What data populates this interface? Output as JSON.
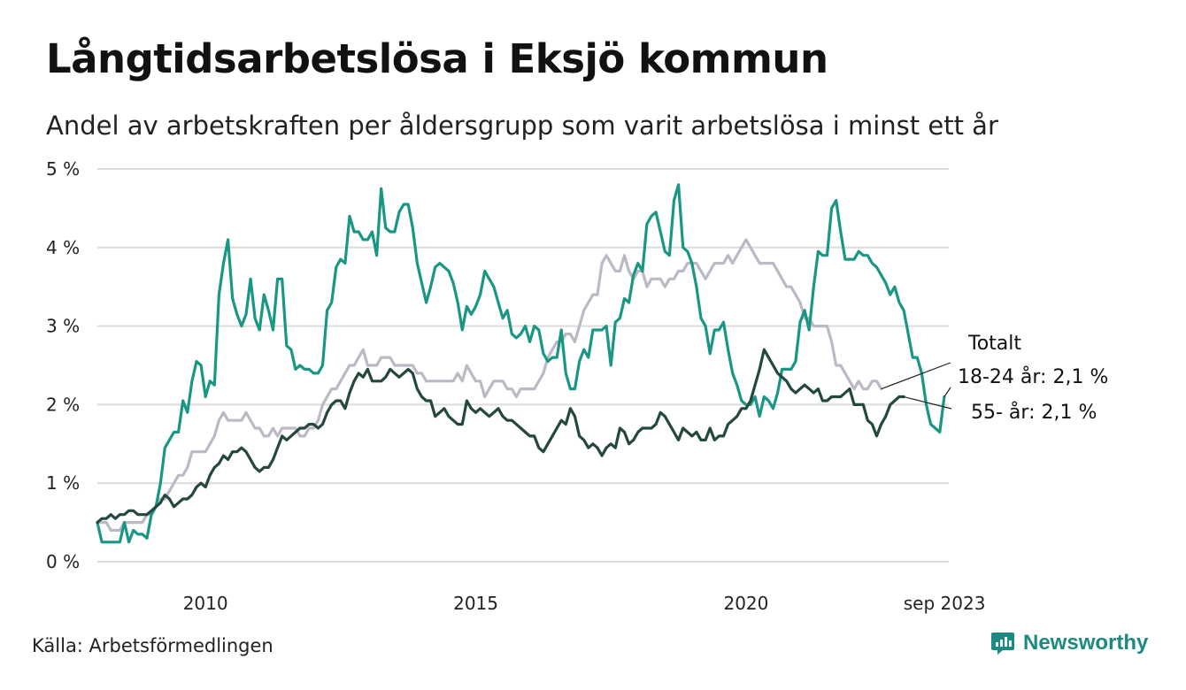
{
  "title": "Långtidsarbetslösa i Eksjö kommun",
  "subtitle": "Andel av arbetskraften per åldersgrupp som varit arbetslösa i minst ett år",
  "source": "Källa: Arbetsförmedlingen",
  "brand": "Newsworthy",
  "colors": {
    "total": "#bcb9c6",
    "youth": "#1a9685",
    "older": "#24473f",
    "grid": "#dcdcdc",
    "brand": "#1b8a80"
  },
  "chart_data": {
    "type": "line",
    "x_start": 2008.0,
    "x_step": 0.08333,
    "xlim": [
      2008.0,
      2023.75
    ],
    "ylim": [
      0,
      5
    ],
    "y_ticks": [
      0,
      1,
      2,
      3,
      4,
      5
    ],
    "y_tick_labels": [
      "0 %",
      "1 %",
      "2 %",
      "3 %",
      "4 %",
      "5 %"
    ],
    "x_ticks": [
      2010,
      2015,
      2020,
      2023.67
    ],
    "x_tick_labels": [
      "2010",
      "2015",
      "2020",
      "sep 2023"
    ],
    "series": [
      {
        "name": "Totalt",
        "label": "Totalt",
        "color": "#bcb9c6",
        "values": [
          0.5,
          0.5,
          0.5,
          0.4,
          0.4,
          0.4,
          0.5,
          0.5,
          0.5,
          0.5,
          0.5,
          0.6,
          0.6,
          0.7,
          0.8,
          0.8,
          0.9,
          1.0,
          1.1,
          1.1,
          1.2,
          1.4,
          1.4,
          1.4,
          1.4,
          1.5,
          1.6,
          1.8,
          1.9,
          1.8,
          1.8,
          1.8,
          1.8,
          1.9,
          1.8,
          1.7,
          1.7,
          1.6,
          1.6,
          1.7,
          1.6,
          1.7,
          1.7,
          1.7,
          1.7,
          1.6,
          1.6,
          1.7,
          1.7,
          1.8,
          2.0,
          2.1,
          2.2,
          2.2,
          2.3,
          2.4,
          2.5,
          2.5,
          2.6,
          2.7,
          2.5,
          2.5,
          2.5,
          2.6,
          2.6,
          2.6,
          2.5,
          2.5,
          2.5,
          2.5,
          2.5,
          2.4,
          2.4,
          2.3,
          2.3,
          2.3,
          2.3,
          2.3,
          2.3,
          2.3,
          2.4,
          2.3,
          2.5,
          2.4,
          2.3,
          2.3,
          2.1,
          2.2,
          2.3,
          2.3,
          2.3,
          2.2,
          2.2,
          2.1,
          2.2,
          2.2,
          2.2,
          2.2,
          2.3,
          2.4,
          2.6,
          2.7,
          2.8,
          2.8,
          2.9,
          2.9,
          2.8,
          3.0,
          3.2,
          3.3,
          3.4,
          3.4,
          3.8,
          3.9,
          3.8,
          3.7,
          3.7,
          3.9,
          3.7,
          3.6,
          3.7,
          3.7,
          3.5,
          3.6,
          3.6,
          3.6,
          3.5,
          3.6,
          3.6,
          3.7,
          3.7,
          3.8,
          3.8,
          3.8,
          3.7,
          3.6,
          3.7,
          3.8,
          3.8,
          3.8,
          3.9,
          3.8,
          3.9,
          4.0,
          4.1,
          4.0,
          3.9,
          3.8,
          3.8,
          3.8,
          3.8,
          3.7,
          3.6,
          3.5,
          3.5,
          3.4,
          3.3,
          3.1,
          3.1,
          3.0,
          3.0,
          3.0,
          3.0,
          2.8,
          2.5,
          2.5,
          2.4,
          2.3,
          2.2,
          2.3,
          2.2,
          2.2,
          2.3,
          2.3,
          2.2
        ]
      },
      {
        "name": "18-24 år",
        "label": "18-24 år: 2,1 %",
        "color": "#1a9685",
        "values": [
          0.5,
          0.25,
          0.25,
          0.25,
          0.25,
          0.25,
          0.5,
          0.25,
          0.4,
          0.35,
          0.35,
          0.3,
          0.6,
          0.7,
          1.0,
          1.45,
          1.55,
          1.65,
          1.65,
          2.05,
          1.9,
          2.3,
          2.55,
          2.5,
          2.1,
          2.3,
          2.25,
          3.4,
          3.8,
          4.1,
          3.35,
          3.15,
          3.0,
          3.15,
          3.6,
          3.1,
          2.95,
          3.4,
          3.2,
          2.95,
          3.6,
          3.6,
          2.75,
          2.7,
          2.45,
          2.5,
          2.45,
          2.45,
          2.4,
          2.4,
          2.5,
          3.2,
          3.3,
          3.75,
          3.85,
          3.8,
          4.4,
          4.2,
          4.2,
          4.1,
          4.1,
          4.2,
          3.9,
          4.75,
          4.25,
          4.2,
          4.2,
          4.45,
          4.55,
          4.55,
          4.25,
          3.8,
          3.55,
          3.3,
          3.5,
          3.75,
          3.8,
          3.75,
          3.7,
          3.55,
          3.3,
          2.95,
          3.25,
          3.15,
          3.25,
          3.4,
          3.7,
          3.6,
          3.5,
          3.3,
          3.1,
          3.2,
          2.9,
          2.85,
          2.9,
          3.0,
          2.8,
          3.0,
          2.95,
          2.65,
          2.55,
          2.6,
          2.6,
          2.95,
          2.4,
          2.2,
          2.2,
          2.55,
          2.7,
          2.6,
          2.95,
          2.95,
          2.95,
          3.0,
          2.5,
          3.05,
          3.1,
          3.35,
          3.3,
          3.65,
          3.8,
          3.7,
          4.3,
          4.4,
          4.45,
          4.2,
          3.95,
          3.9,
          4.6,
          4.8,
          4.0,
          3.95,
          3.8,
          3.5,
          3.1,
          3.0,
          2.65,
          2.95,
          2.95,
          3.05,
          2.7,
          2.4,
          2.25,
          2.05,
          2.0,
          2.0,
          2.1,
          1.85,
          2.1,
          2.05,
          1.95,
          2.15,
          2.45,
          2.45,
          2.45,
          2.55,
          3.05,
          3.2,
          2.95,
          3.5,
          3.95,
          3.9,
          3.9,
          4.5,
          4.6,
          4.2,
          3.85,
          3.85,
          3.85,
          3.95,
          3.9,
          3.9,
          3.8,
          3.75,
          3.65,
          3.55,
          3.4,
          3.5,
          3.3,
          3.2,
          2.9,
          2.6,
          2.6,
          2.4,
          2.0,
          1.75,
          1.7,
          1.65,
          2.1
        ]
      },
      {
        "name": "55- år",
        "label": "55- år: 2,1 %",
        "color": "#24473f",
        "values": [
          0.5,
          0.55,
          0.55,
          0.6,
          0.55,
          0.6,
          0.6,
          0.65,
          0.65,
          0.6,
          0.6,
          0.6,
          0.65,
          0.7,
          0.75,
          0.85,
          0.8,
          0.7,
          0.75,
          0.8,
          0.8,
          0.85,
          0.95,
          1.0,
          0.95,
          1.1,
          1.2,
          1.25,
          1.35,
          1.3,
          1.4,
          1.4,
          1.45,
          1.4,
          1.3,
          1.2,
          1.15,
          1.2,
          1.2,
          1.3,
          1.45,
          1.6,
          1.55,
          1.6,
          1.65,
          1.7,
          1.7,
          1.75,
          1.75,
          1.7,
          1.75,
          1.9,
          2.0,
          2.05,
          2.05,
          1.95,
          2.15,
          2.3,
          2.4,
          2.35,
          2.45,
          2.3,
          2.3,
          2.3,
          2.35,
          2.45,
          2.4,
          2.35,
          2.4,
          2.45,
          2.4,
          2.2,
          2.1,
          2.05,
          2.05,
          1.85,
          1.9,
          1.95,
          1.85,
          1.8,
          1.75,
          1.75,
          2.05,
          1.95,
          1.9,
          1.95,
          1.9,
          1.85,
          1.9,
          1.95,
          1.85,
          1.8,
          1.8,
          1.75,
          1.7,
          1.65,
          1.6,
          1.6,
          1.45,
          1.4,
          1.5,
          1.6,
          1.7,
          1.8,
          1.75,
          1.95,
          1.85,
          1.6,
          1.55,
          1.45,
          1.5,
          1.45,
          1.35,
          1.45,
          1.5,
          1.45,
          1.7,
          1.65,
          1.5,
          1.55,
          1.65,
          1.7,
          1.7,
          1.7,
          1.75,
          1.9,
          1.85,
          1.75,
          1.65,
          1.55,
          1.7,
          1.65,
          1.6,
          1.65,
          1.55,
          1.55,
          1.7,
          1.55,
          1.6,
          1.6,
          1.75,
          1.8,
          1.85,
          1.95,
          1.95,
          2.05,
          2.25,
          2.45,
          2.7,
          2.6,
          2.5,
          2.4,
          2.35,
          2.3,
          2.2,
          2.15,
          2.2,
          2.25,
          2.2,
          2.15,
          2.2,
          2.05,
          2.05,
          2.1,
          2.1,
          2.1,
          2.15,
          2.2,
          2.0,
          2.0,
          2.0,
          1.8,
          1.75,
          1.6,
          1.75,
          1.85,
          2.0,
          2.05,
          2.1,
          2.1
        ]
      }
    ]
  }
}
